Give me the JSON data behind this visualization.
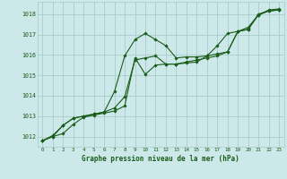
{
  "xlabel": "Graphe pression niveau de la mer (hPa)",
  "bg_color": "#cce8e8",
  "grid_color": "#aacccc",
  "line_color": "#1a5c1a",
  "xlim": [
    -0.5,
    23.5
  ],
  "ylim": [
    1011.5,
    1018.6
  ],
  "yticks": [
    1012,
    1013,
    1014,
    1015,
    1016,
    1017,
    1018
  ],
  "xticks": [
    0,
    1,
    2,
    3,
    4,
    5,
    6,
    7,
    8,
    9,
    10,
    11,
    12,
    13,
    14,
    15,
    16,
    17,
    18,
    19,
    20,
    21,
    22,
    23
  ],
  "series": [
    [
      1011.8,
      1012.0,
      1012.15,
      1012.6,
      1012.95,
      1013.05,
      1013.15,
      1013.25,
      1013.5,
      1015.85,
      1015.05,
      1015.5,
      1015.55,
      1015.55,
      1015.6,
      1015.65,
      1015.95,
      1016.05,
      1016.15,
      1017.15,
      1017.25,
      1018.0,
      1018.15,
      1018.2
    ],
    [
      1011.8,
      1012.05,
      1012.55,
      1012.9,
      1013.0,
      1013.1,
      1013.2,
      1014.2,
      1015.95,
      1016.75,
      1017.05,
      1016.75,
      1016.45,
      1015.85,
      1015.9,
      1015.9,
      1015.95,
      1016.45,
      1017.05,
      1017.15,
      1017.35,
      1017.95,
      1018.2,
      1018.25
    ],
    [
      1011.8,
      1012.0,
      1012.55,
      1012.9,
      1013.0,
      1013.1,
      1013.2,
      1013.4,
      1013.95,
      1015.75,
      1015.85,
      1015.95,
      1015.55,
      1015.55,
      1015.65,
      1015.75,
      1015.85,
      1015.95,
      1016.15,
      1017.15,
      1017.25,
      1017.95,
      1018.15,
      1018.2
    ]
  ]
}
